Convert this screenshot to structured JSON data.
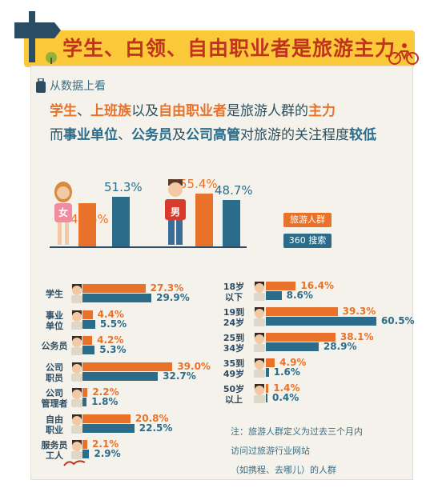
{
  "title": "学生、白领、自由职业者是旅游主力",
  "intro": "从数据上看",
  "headline": {
    "line1": [
      {
        "t": "学生",
        "c": "org"
      },
      {
        "t": "、",
        "c": "plain"
      },
      {
        "t": "上班族",
        "c": "org"
      },
      {
        "t": "以及",
        "c": "plain"
      },
      {
        "t": "自由职业者",
        "c": "org"
      },
      {
        "t": "是旅游人群的",
        "c": "plain"
      },
      {
        "t": "主力",
        "c": "org"
      }
    ],
    "line2": [
      {
        "t": "而",
        "c": "plain"
      },
      {
        "t": "事业单位",
        "c": "blu"
      },
      {
        "t": "、",
        "c": "plain"
      },
      {
        "t": "公务员",
        "c": "blu"
      },
      {
        "t": "及",
        "c": "plain"
      },
      {
        "t": "公司高管",
        "c": "blu"
      },
      {
        "t": "对旅游的关注程度",
        "c": "plain"
      },
      {
        "t": "较低",
        "c": "blu"
      }
    ]
  },
  "colors": {
    "tourist": "#e8722a",
    "search": "#2b6c8a",
    "banner": "#fbc83a"
  },
  "chart_data": [
    {
      "type": "bar",
      "categories": [
        "女",
        "男"
      ],
      "series": [
        {
          "name": "旅游人群",
          "values": [
            44.6,
            55.4
          ]
        },
        {
          "name": "360 搜索",
          "values": [
            51.3,
            48.7
          ]
        }
      ],
      "value_labels": [
        [
          "44.6%",
          "55.4%"
        ],
        [
          "51.3%",
          "48.7%"
        ]
      ]
    },
    {
      "type": "bar",
      "orientation": "horizontal",
      "categories": [
        "学生",
        "事业单位",
        "公务员",
        "公司职员",
        "公司管理者",
        "自由职业",
        "服务员工人"
      ],
      "category_lines": [
        [
          "学生"
        ],
        [
          "事业",
          "单位"
        ],
        [
          "公务员"
        ],
        [
          "公司",
          "职员"
        ],
        [
          "公司",
          "管理者"
        ],
        [
          "自由",
          "职业"
        ],
        [
          "服务员",
          "工人"
        ]
      ],
      "series": [
        {
          "name": "旅游人群",
          "values": [
            27.3,
            4.4,
            4.2,
            39.0,
            2.2,
            20.8,
            2.1
          ]
        },
        {
          "name": "360 搜索",
          "values": [
            29.9,
            5.5,
            5.3,
            32.7,
            1.8,
            22.5,
            2.9
          ]
        }
      ],
      "value_labels": [
        [
          "27.3%",
          "4.4%",
          "4.2%",
          "39.0%",
          "2.2%",
          "20.8%",
          "2.1%"
        ],
        [
          "29.9%",
          "5.5%",
          "5.3%",
          "32.7%",
          "1.8%",
          "22.5%",
          "2.9%"
        ]
      ]
    },
    {
      "type": "bar",
      "orientation": "horizontal",
      "categories": [
        "18岁以下",
        "19到24岁",
        "25到34岁",
        "35到49岁",
        "50岁以上"
      ],
      "category_lines": [
        [
          "18岁",
          "以下"
        ],
        [
          "19到",
          "24岁"
        ],
        [
          "25到",
          "34岁"
        ],
        [
          "35到",
          "49岁"
        ],
        [
          "50岁",
          "以上"
        ]
      ],
      "series": [
        {
          "name": "旅游人群",
          "values": [
            16.4,
            39.3,
            38.1,
            4.9,
            1.4
          ]
        },
        {
          "name": "360 搜索",
          "values": [
            8.6,
            60.5,
            28.9,
            1.6,
            0.4
          ]
        }
      ],
      "value_labels": [
        [
          "16.4%",
          "39.3%",
          "38.1%",
          "4.9%",
          "1.4%"
        ],
        [
          "8.6%",
          "60.5%",
          "28.9%",
          "1.6%",
          "0.4%"
        ]
      ]
    }
  ],
  "legend": {
    "tourist": "旅游人群",
    "search": "360 搜索"
  },
  "note": [
    "注：旅游人群定义为过去三个月内",
    "访问过旅游行业网站",
    "（如携程、去哪儿）的人群"
  ]
}
